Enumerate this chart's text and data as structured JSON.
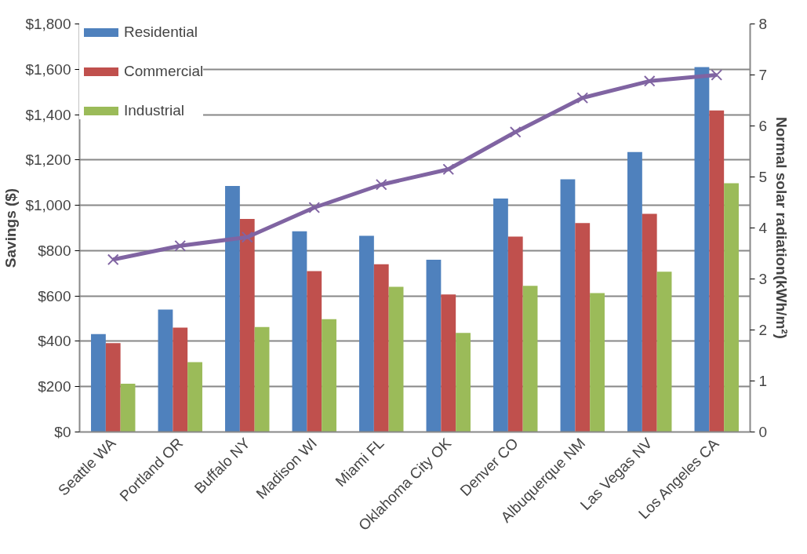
{
  "chart_data": {
    "type": "bar",
    "categories": [
      "Seattle WA",
      "Portland OR",
      "Buffalo NY",
      "Madison WI",
      "Miami FL",
      "Oklahoma City OK",
      "Denver CO",
      "Albuquerque NM",
      "Las Vegas NV",
      "Los Angeles CA"
    ],
    "series": [
      {
        "name": "Residential",
        "color": "#4f81bd",
        "values": [
          432,
          540,
          1085,
          885,
          865,
          760,
          1030,
          1115,
          1235,
          1610
        ]
      },
      {
        "name": "Commercial",
        "color": "#c0504d",
        "values": [
          392,
          460,
          940,
          710,
          740,
          607,
          862,
          922,
          962,
          1418
        ]
      },
      {
        "name": "Industrial",
        "color": "#9bbb59",
        "values": [
          213,
          308,
          463,
          498,
          640,
          437,
          645,
          613,
          707,
          1097
        ]
      },
      {
        "type": "line",
        "axis": "y2",
        "color": "#8064a2",
        "marker": "cross",
        "values": [
          3.38,
          3.65,
          3.82,
          4.4,
          4.85,
          5.15,
          5.88,
          6.55,
          6.88,
          7.0
        ]
      }
    ],
    "ylabel": "Savings ($)",
    "y2label": "Normal solar radiation(kWh/m²)",
    "ylim": [
      0,
      1800
    ],
    "yticks": [
      {
        "value": 0,
        "label": "$0"
      },
      {
        "value": 200,
        "label": "$200"
      },
      {
        "value": 400,
        "label": "$400"
      },
      {
        "value": 600,
        "label": "$600"
      },
      {
        "value": 800,
        "label": "$800"
      },
      {
        "value": 1000,
        "label": "$1,000"
      },
      {
        "value": 1200,
        "label": "$1,200"
      },
      {
        "value": 1400,
        "label": "$1,400"
      },
      {
        "value": 1600,
        "label": "$1,600"
      },
      {
        "value": 1800,
        "label": "$1,800"
      }
    ],
    "y2lim": [
      0,
      8
    ],
    "y2ticks": [
      0,
      1,
      2,
      3,
      4,
      5,
      6,
      7,
      8
    ],
    "grid": "y",
    "legend": "top left"
  }
}
